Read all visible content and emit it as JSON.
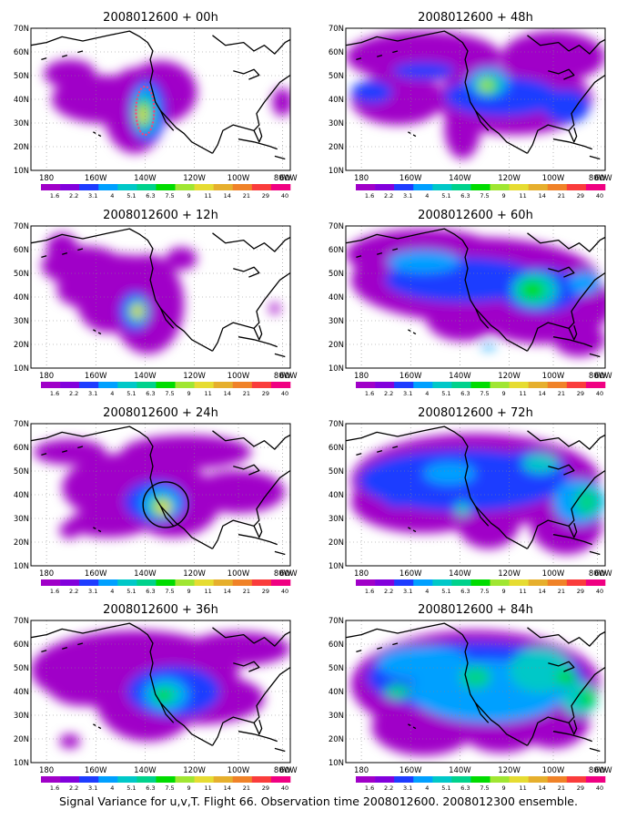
{
  "caption": "Signal Variance for u,v,T. Flight 66. Observation time 2008012600. 2008012300 ensemble.",
  "lat_labels": [
    "70N",
    "60N",
    "50N",
    "40N",
    "30N",
    "20N",
    "10N"
  ],
  "lon_labels": [
    "180",
    "160W",
    "140W",
    "120W",
    "100W",
    "80W",
    "60W"
  ],
  "colorbar": {
    "labels": [
      "1.6",
      "2.2",
      "3.1",
      "4",
      "5.1",
      "6.3",
      "7.5",
      "9",
      "11",
      "14",
      "21",
      "29",
      "40"
    ],
    "colors": [
      "#a000c8",
      "#8200dc",
      "#1e3cff",
      "#00a0ff",
      "#00c8c8",
      "#00d28c",
      "#00dc00",
      "#a0e632",
      "#e6dc32",
      "#e6af2d",
      "#f08228",
      "#fa3c3c",
      "#f00082"
    ]
  },
  "panels": [
    {
      "title": "2008012600 + 00h",
      "col": 0,
      "row": 0
    },
    {
      "title": "2008012600 + 48h",
      "col": 1,
      "row": 0
    },
    {
      "title": "2008012600 + 12h",
      "col": 0,
      "row": 1
    },
    {
      "title": "2008012600 + 60h",
      "col": 1,
      "row": 1
    },
    {
      "title": "2008012600 + 24h",
      "col": 0,
      "row": 2
    },
    {
      "title": "2008012600 + 72h",
      "col": 1,
      "row": 2
    },
    {
      "title": "2008012600 + 36h",
      "col": 0,
      "row": 3
    },
    {
      "title": "2008012600 + 84h",
      "col": 1,
      "row": 3
    }
  ]
}
